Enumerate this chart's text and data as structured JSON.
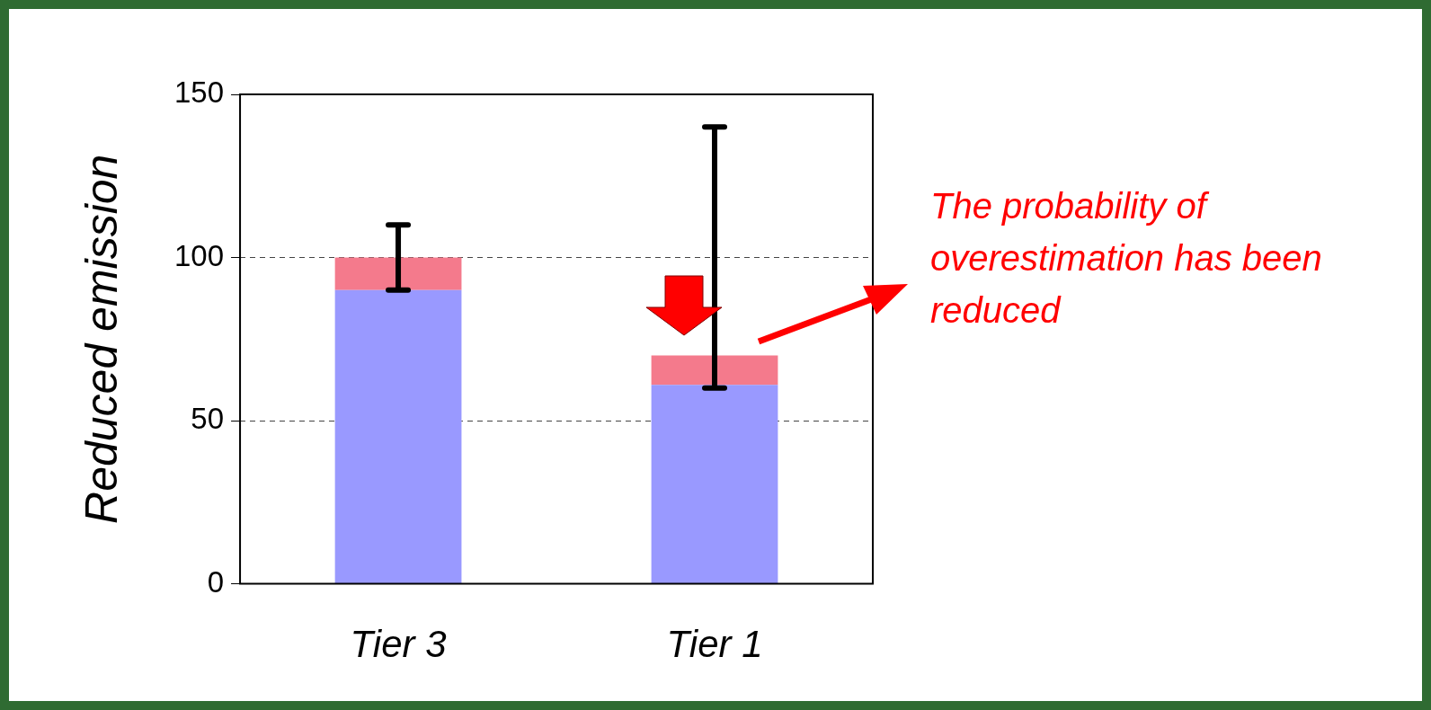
{
  "chart_data": {
    "type": "bar",
    "stacked": true,
    "ylabel": "Reduced emission",
    "categories": [
      "Tier 3",
      "Tier 1"
    ],
    "series": [
      {
        "color": "#9999ff",
        "values": [
          90,
          61
        ]
      },
      {
        "color": "#f47a8c",
        "values": [
          10,
          9
        ],
        "errors": [
          [
            90,
            110
          ],
          [
            60,
            140
          ]
        ]
      }
    ],
    "ylim": [
      0,
      150
    ],
    "yticks": [
      0,
      50,
      100,
      150
    ],
    "grid": "y",
    "line_style": "dashed",
    "legend": false,
    "annotations": [
      "The probability of overestimation has been reduced"
    ]
  }
}
